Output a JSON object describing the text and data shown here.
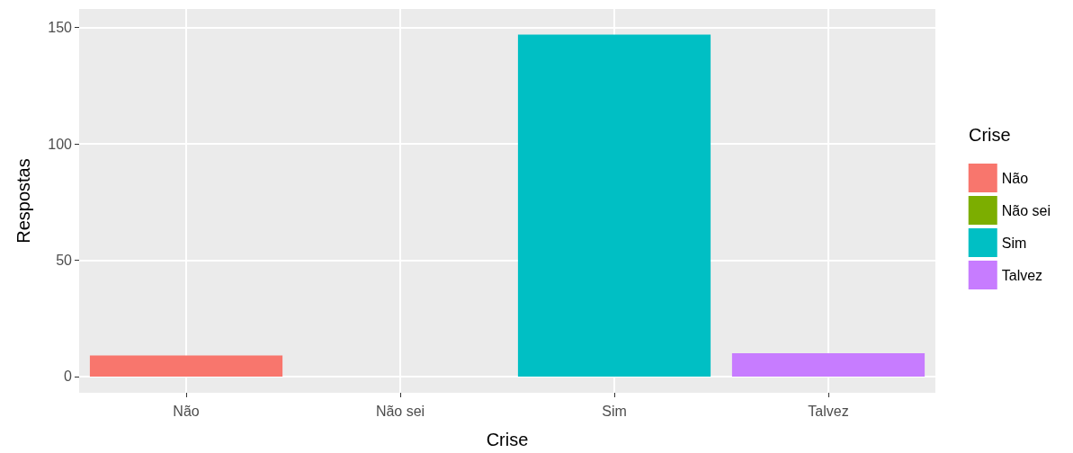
{
  "chart_data": {
    "type": "bar",
    "xlabel": "Crise",
    "ylabel": "Respostas",
    "legend_title": "Crise",
    "categories": [
      "Não",
      "Não sei",
      "Sim",
      "Talvez"
    ],
    "series": [
      {
        "name": "Não",
        "color": "#f8766d",
        "values": [
          9,
          null,
          null,
          null
        ]
      },
      {
        "name": "Não sei",
        "color": "#7cae00",
        "values": [
          null,
          0,
          null,
          null
        ]
      },
      {
        "name": "Sim",
        "color": "#00bfc4",
        "values": [
          null,
          null,
          147,
          null
        ]
      },
      {
        "name": "Talvez",
        "color": "#c77cff",
        "values": [
          null,
          null,
          null,
          10
        ]
      }
    ],
    "ylim": [
      -7,
      158
    ],
    "yticks": [
      0,
      50,
      100,
      150
    ],
    "grid": true,
    "legend": "right"
  }
}
